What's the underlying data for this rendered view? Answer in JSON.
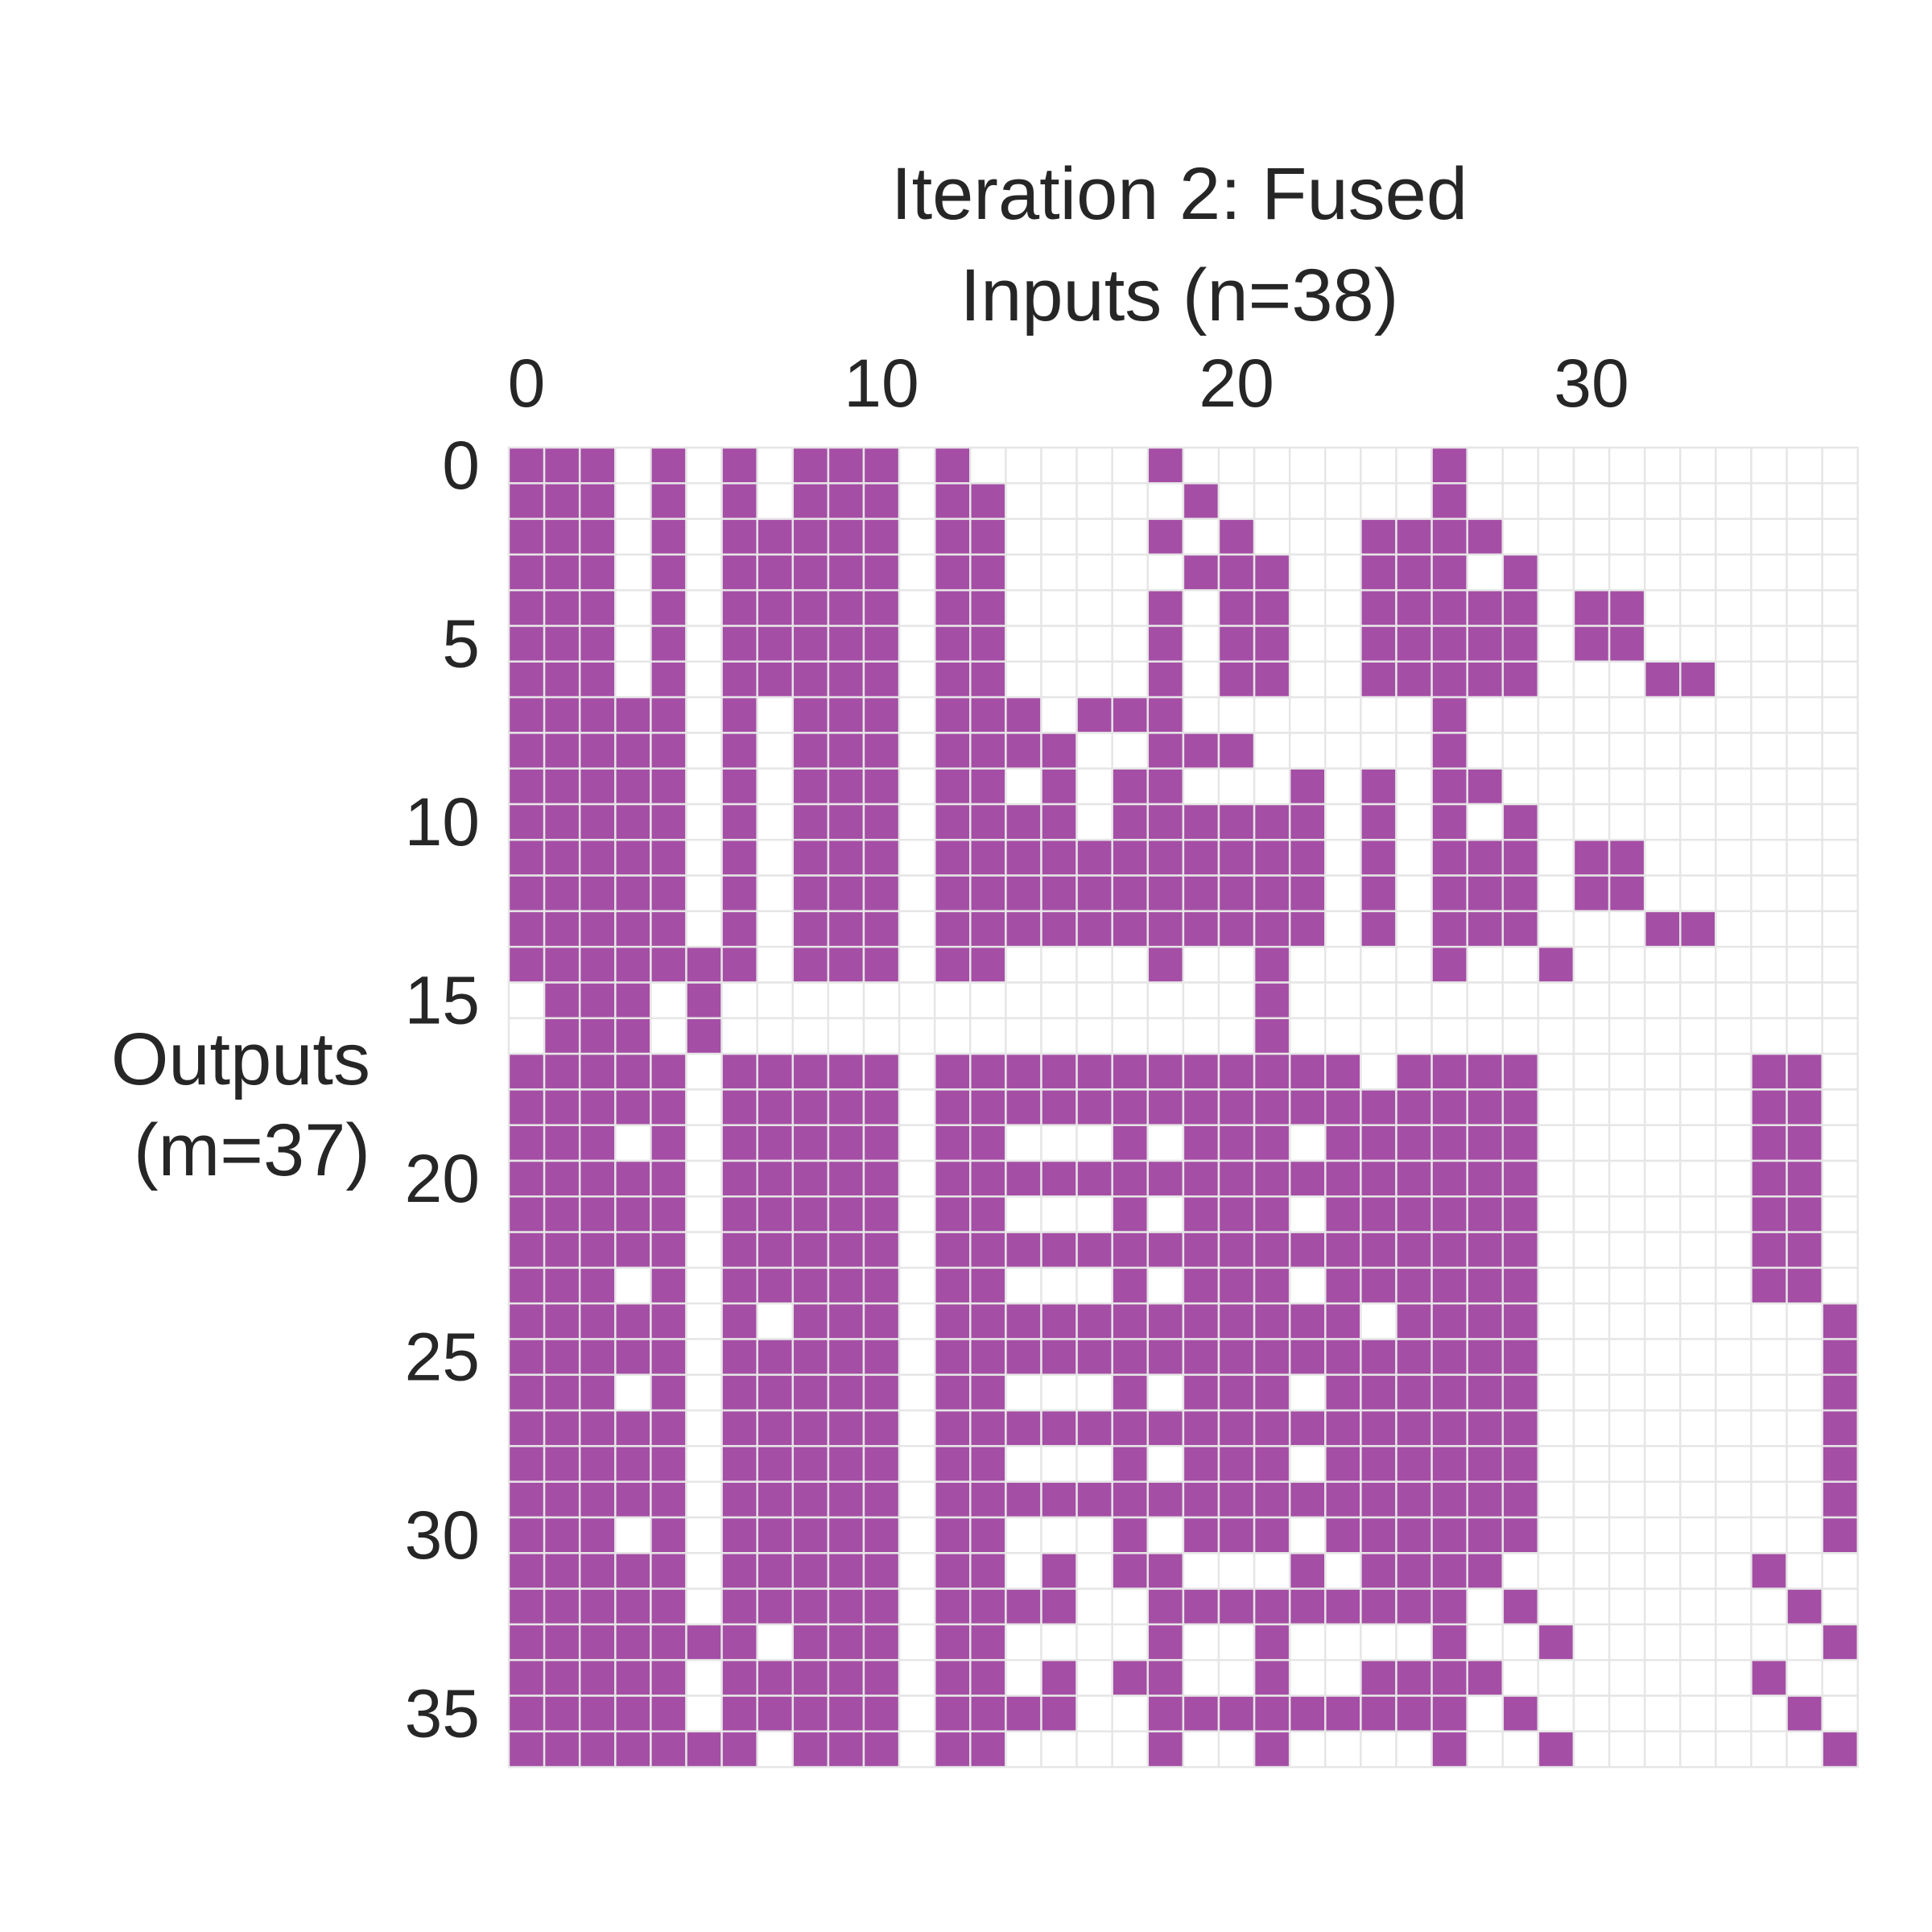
{
  "chart_data": {
    "type": "heatmap",
    "title": "Iteration 2: Fused",
    "xlabel": "Inputs (n=38)",
    "ylabel_lines": [
      "Outputs",
      "(m=37)"
    ],
    "n_cols": 38,
    "n_rows": 37,
    "x_ticks": [
      "0",
      "10",
      "20",
      "30"
    ],
    "x_tick_values": [
      0,
      10,
      20,
      30
    ],
    "y_ticks": [
      "0",
      "5",
      "10",
      "15",
      "20",
      "25",
      "30",
      "35"
    ],
    "y_tick_values": [
      0,
      5,
      10,
      15,
      20,
      25,
      30,
      35
    ],
    "x_axis_position": "top",
    "grid": true,
    "colors": {
      "filled": "#a54ea5",
      "empty": "#ffffff",
      "grid": "#e6e6e6",
      "text": "#262626"
    },
    "rows": [
      "11101010111010000010000000100000000000",
      "11101010111011000001000000100000000000",
      "11101011111011000010100011110000000000",
      "11101011111011000001110011101000000000",
      "11101011111011000010110011111011000000",
      "11101011111011000010110011111011000000",
      "11101011111011000010110011111000110000",
      "11111010111011101110000000100000000000",
      "11111010111011110011100000100000000000",
      "11111010111011010110001010110000000000",
      "11111010111011110111111010101000000000",
      "11111010111011111111111010111011000000",
      "11111010111011111111111010111011000000",
      "11111010111011111111111010111000110000",
      "11111110111011000010010000100100000000",
      "01110100000000000000010000000000000000",
      "01110100000000000000010000000000000000",
      "11111011111011111111111101111000000110",
      "11111011111011111111111111111000000110",
      "11101011111011000101110111111000000110",
      "11111011111011111111111111111000000110",
      "11111011111011000101110111111000000110",
      "11111011111011111111111111111000000110",
      "11101011111011000101110111111000000110",
      "11111010111011111111111101111000000001",
      "11111011111011111111111111111000000001",
      "11101011111011000101110111111000000001",
      "11111011111011111111111111111000000001",
      "11111011111011000101110111111000000001",
      "11111011111011111111111111111000000001",
      "11101011111011000101110111111000000001",
      "11111011111011010110001011110000000100",
      "11111011111011110011111111101000000010",
      "11111110111011000010010000100100000001",
      "11111011111011010110010011110000000100",
      "11111011111011110011111111101000000010",
      "11111110111011000010010000100100000001"
    ]
  }
}
